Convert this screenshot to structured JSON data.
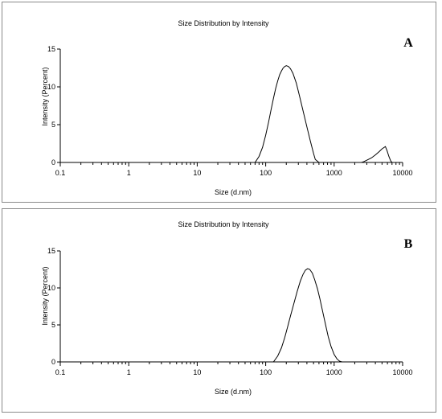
{
  "chart_data": [
    {
      "panel_label": "A",
      "type": "line",
      "title": "Size Distribution by Intensity",
      "xlabel": "Size (d.nm)",
      "ylabel": "Intensity (Percent)",
      "x_scale": "log",
      "xlim": [
        0.1,
        10000
      ],
      "ylim": [
        0,
        15
      ],
      "x_ticks": [
        0.1,
        1,
        10,
        100,
        1000,
        10000
      ],
      "x_tick_labels": [
        "0.1",
        "1",
        "10",
        "100",
        "1000",
        "10000"
      ],
      "y_ticks": [
        0,
        5,
        10,
        15
      ],
      "y_tick_labels": [
        "0",
        "5",
        "10",
        "15"
      ],
      "grid": false,
      "series": [
        {
          "x": [
            0.1,
            70,
            80,
            90,
            100,
            110,
            120,
            130,
            140,
            150,
            160,
            170,
            180,
            190,
            200,
            215,
            230,
            250,
            280,
            310,
            350,
            400,
            450,
            500,
            530,
            600,
            1000,
            2500,
            2700,
            3000,
            3500,
            4000,
            4500,
            5000,
            5600,
            5900,
            6300,
            6700,
            7000,
            10000
          ],
          "y": [
            0,
            0,
            0.8,
            2.0,
            3.6,
            5.3,
            7.0,
            8.5,
            9.8,
            10.8,
            11.6,
            12.1,
            12.5,
            12.7,
            12.8,
            12.7,
            12.4,
            11.8,
            10.5,
            8.9,
            6.9,
            4.7,
            2.8,
            1.2,
            0.4,
            0,
            0,
            0,
            0.1,
            0.3,
            0.6,
            1.0,
            1.4,
            1.8,
            2.1,
            1.6,
            0.8,
            0.2,
            0,
            0
          ]
        }
      ]
    },
    {
      "panel_label": "B",
      "type": "line",
      "title": "Size Distribution by Intensity",
      "xlabel": "Size (d.nm)",
      "ylabel": "Intensity (Percent)",
      "x_scale": "log",
      "xlim": [
        0.1,
        10000
      ],
      "ylim": [
        0,
        15
      ],
      "x_ticks": [
        0.1,
        1,
        10,
        100,
        1000,
        10000
      ],
      "x_tick_labels": [
        "0.1",
        "1",
        "10",
        "100",
        "1000",
        "10000"
      ],
      "y_ticks": [
        0,
        5,
        10,
        15
      ],
      "y_tick_labels": [
        "0",
        "5",
        "10",
        "15"
      ],
      "grid": false,
      "series": [
        {
          "x": [
            0.1,
            130,
            150,
            170,
            190,
            210,
            230,
            260,
            290,
            320,
            350,
            380,
            410,
            440,
            480,
            520,
            570,
            620,
            680,
            750,
            820,
            900,
            1000,
            1100,
            1200,
            1300,
            10000
          ],
          "y": [
            0,
            0,
            0.8,
            1.9,
            3.3,
            4.8,
            6.2,
            8.0,
            9.6,
            10.9,
            11.8,
            12.4,
            12.6,
            12.5,
            12.0,
            11.1,
            9.9,
            8.5,
            6.8,
            5.0,
            3.4,
            2.1,
            1.0,
            0.4,
            0.1,
            0,
            0
          ]
        }
      ]
    }
  ]
}
